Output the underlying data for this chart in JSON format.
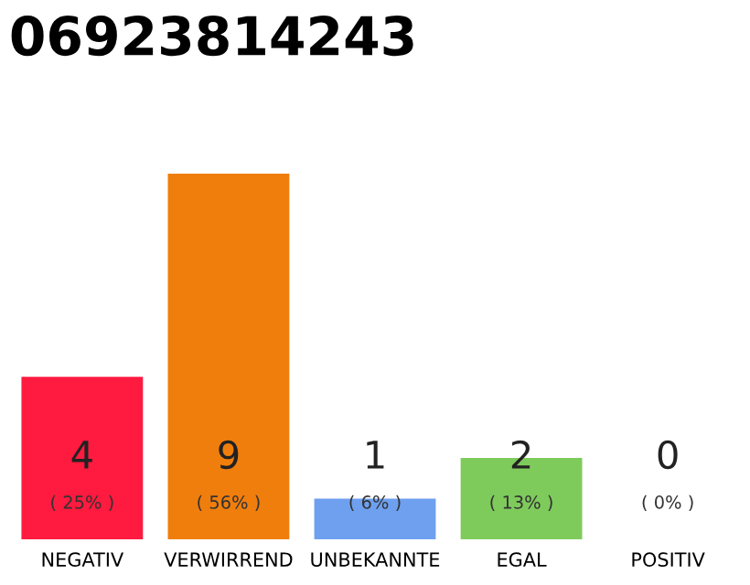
{
  "chart_data": {
    "type": "bar",
    "title": "06923814243",
    "categories": [
      "NEGATIV",
      "VERWIRREND",
      "UNBEKANNTE",
      "EGAL",
      "POSITIV"
    ],
    "values": [
      4,
      9,
      1,
      2,
      0
    ],
    "colors": [
      "#ff1a3f",
      "#f07e0c",
      "#6ea0ef",
      "#7ecb5c",
      "#b0b0b0"
    ],
    "data_labels": true,
    "annotations": [
      "( 25% )",
      "( 56% )",
      "( 6% )",
      "( 13% )",
      "( 0% )"
    ],
    "grid": false,
    "legend": false
  }
}
